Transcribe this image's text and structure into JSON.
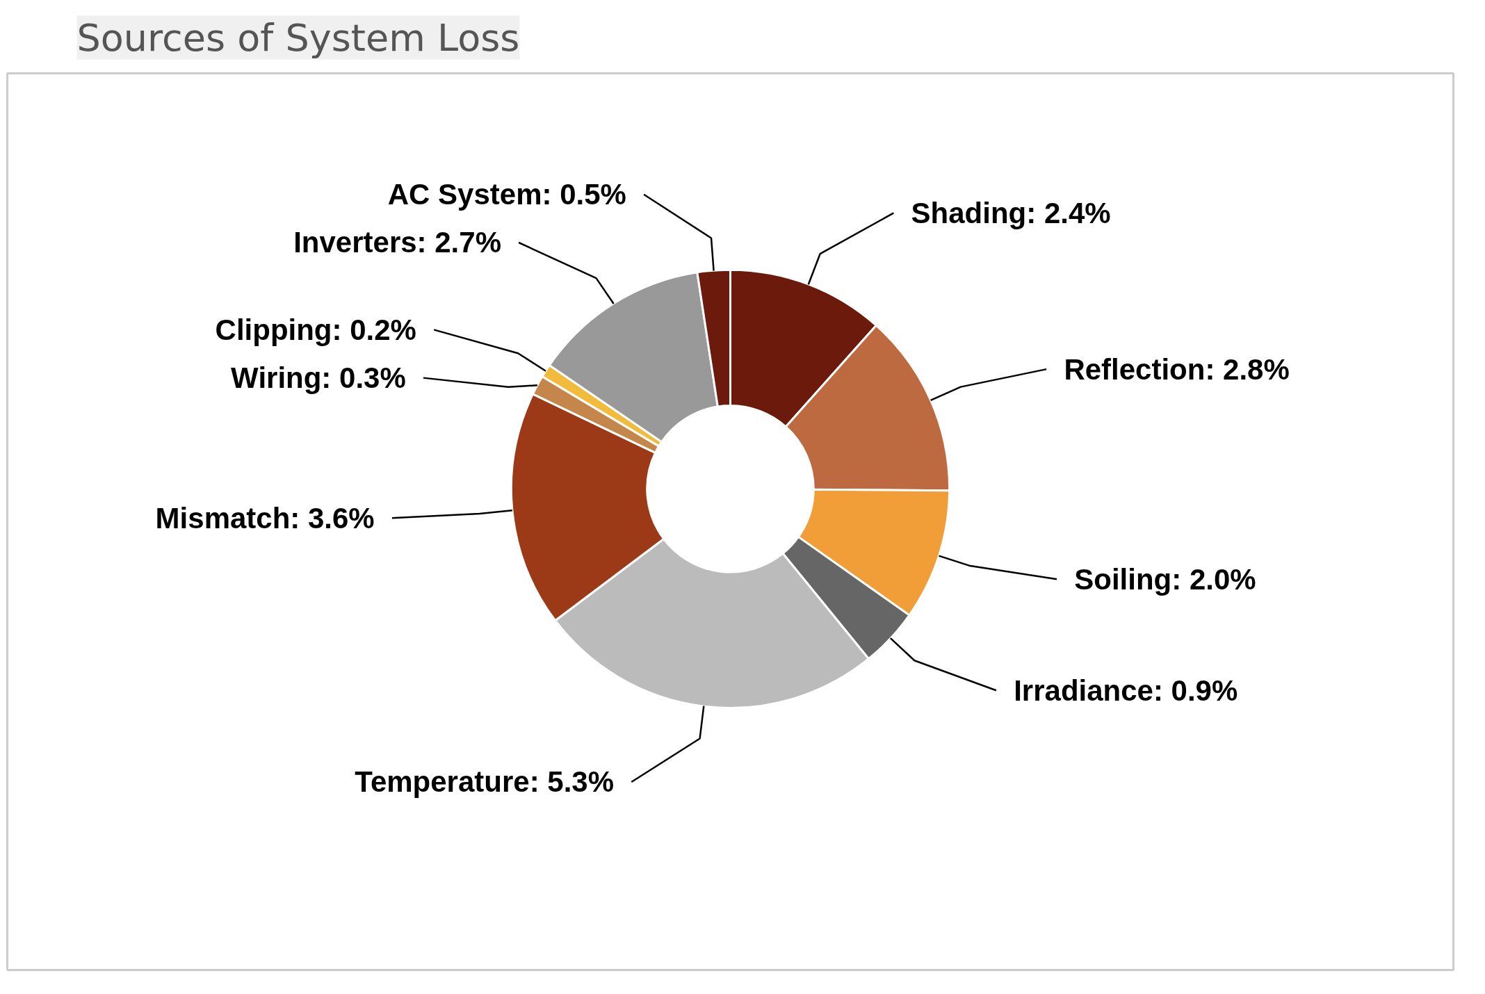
{
  "chart_data": {
    "type": "donut",
    "title": "Sources of System Loss",
    "categories": [
      "Shading",
      "Reflection",
      "Soiling",
      "Irradiance",
      "Temperature",
      "Mismatch",
      "Wiring",
      "Clipping",
      "Inverters",
      "AC System"
    ],
    "values": [
      2.4,
      2.8,
      2.0,
      0.9,
      5.3,
      3.6,
      0.3,
      0.2,
      2.7,
      0.5
    ],
    "value_labels": [
      "2.4%",
      "2.8%",
      "2.0%",
      "0.9%",
      "5.3%",
      "3.6%",
      "0.3%",
      "0.2%",
      "2.7%",
      "0.5%"
    ],
    "colors": [
      "#6b1a0c",
      "#bd6a40",
      "#f29e38",
      "#666666",
      "#bbbbbb",
      "#9c3916",
      "#c4864a",
      "#f2bb3c",
      "#999999",
      "#6b1a0c"
    ]
  }
}
